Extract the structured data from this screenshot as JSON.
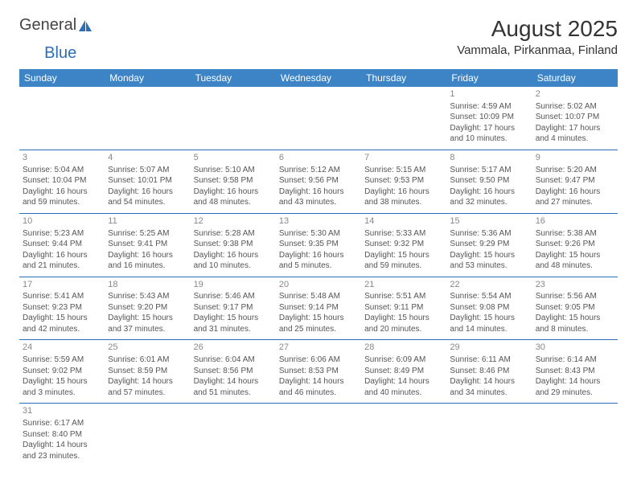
{
  "logo": {
    "part1": "General",
    "part2": "Blue"
  },
  "title": "August 2025",
  "location": "Vammala, Pirkanmaa, Finland",
  "colors": {
    "header_bg": "#3c84c6",
    "header_text": "#ffffff",
    "divider": "#2d6fb5",
    "body_text": "#555555",
    "daynum": "#888888",
    "logo_gray": "#444444",
    "logo_blue": "#2d6fb5",
    "background": "#ffffff"
  },
  "day_headers": [
    "Sunday",
    "Monday",
    "Tuesday",
    "Wednesday",
    "Thursday",
    "Friday",
    "Saturday"
  ],
  "weeks": [
    [
      null,
      null,
      null,
      null,
      null,
      {
        "n": "1",
        "sr": "Sunrise: 4:59 AM",
        "ss": "Sunset: 10:09 PM",
        "dl1": "Daylight: 17 hours",
        "dl2": "and 10 minutes."
      },
      {
        "n": "2",
        "sr": "Sunrise: 5:02 AM",
        "ss": "Sunset: 10:07 PM",
        "dl1": "Daylight: 17 hours",
        "dl2": "and 4 minutes."
      }
    ],
    [
      {
        "n": "3",
        "sr": "Sunrise: 5:04 AM",
        "ss": "Sunset: 10:04 PM",
        "dl1": "Daylight: 16 hours",
        "dl2": "and 59 minutes."
      },
      {
        "n": "4",
        "sr": "Sunrise: 5:07 AM",
        "ss": "Sunset: 10:01 PM",
        "dl1": "Daylight: 16 hours",
        "dl2": "and 54 minutes."
      },
      {
        "n": "5",
        "sr": "Sunrise: 5:10 AM",
        "ss": "Sunset: 9:58 PM",
        "dl1": "Daylight: 16 hours",
        "dl2": "and 48 minutes."
      },
      {
        "n": "6",
        "sr": "Sunrise: 5:12 AM",
        "ss": "Sunset: 9:56 PM",
        "dl1": "Daylight: 16 hours",
        "dl2": "and 43 minutes."
      },
      {
        "n": "7",
        "sr": "Sunrise: 5:15 AM",
        "ss": "Sunset: 9:53 PM",
        "dl1": "Daylight: 16 hours",
        "dl2": "and 38 minutes."
      },
      {
        "n": "8",
        "sr": "Sunrise: 5:17 AM",
        "ss": "Sunset: 9:50 PM",
        "dl1": "Daylight: 16 hours",
        "dl2": "and 32 minutes."
      },
      {
        "n": "9",
        "sr": "Sunrise: 5:20 AM",
        "ss": "Sunset: 9:47 PM",
        "dl1": "Daylight: 16 hours",
        "dl2": "and 27 minutes."
      }
    ],
    [
      {
        "n": "10",
        "sr": "Sunrise: 5:23 AM",
        "ss": "Sunset: 9:44 PM",
        "dl1": "Daylight: 16 hours",
        "dl2": "and 21 minutes."
      },
      {
        "n": "11",
        "sr": "Sunrise: 5:25 AM",
        "ss": "Sunset: 9:41 PM",
        "dl1": "Daylight: 16 hours",
        "dl2": "and 16 minutes."
      },
      {
        "n": "12",
        "sr": "Sunrise: 5:28 AM",
        "ss": "Sunset: 9:38 PM",
        "dl1": "Daylight: 16 hours",
        "dl2": "and 10 minutes."
      },
      {
        "n": "13",
        "sr": "Sunrise: 5:30 AM",
        "ss": "Sunset: 9:35 PM",
        "dl1": "Daylight: 16 hours",
        "dl2": "and 5 minutes."
      },
      {
        "n": "14",
        "sr": "Sunrise: 5:33 AM",
        "ss": "Sunset: 9:32 PM",
        "dl1": "Daylight: 15 hours",
        "dl2": "and 59 minutes."
      },
      {
        "n": "15",
        "sr": "Sunrise: 5:36 AM",
        "ss": "Sunset: 9:29 PM",
        "dl1": "Daylight: 15 hours",
        "dl2": "and 53 minutes."
      },
      {
        "n": "16",
        "sr": "Sunrise: 5:38 AM",
        "ss": "Sunset: 9:26 PM",
        "dl1": "Daylight: 15 hours",
        "dl2": "and 48 minutes."
      }
    ],
    [
      {
        "n": "17",
        "sr": "Sunrise: 5:41 AM",
        "ss": "Sunset: 9:23 PM",
        "dl1": "Daylight: 15 hours",
        "dl2": "and 42 minutes."
      },
      {
        "n": "18",
        "sr": "Sunrise: 5:43 AM",
        "ss": "Sunset: 9:20 PM",
        "dl1": "Daylight: 15 hours",
        "dl2": "and 37 minutes."
      },
      {
        "n": "19",
        "sr": "Sunrise: 5:46 AM",
        "ss": "Sunset: 9:17 PM",
        "dl1": "Daylight: 15 hours",
        "dl2": "and 31 minutes."
      },
      {
        "n": "20",
        "sr": "Sunrise: 5:48 AM",
        "ss": "Sunset: 9:14 PM",
        "dl1": "Daylight: 15 hours",
        "dl2": "and 25 minutes."
      },
      {
        "n": "21",
        "sr": "Sunrise: 5:51 AM",
        "ss": "Sunset: 9:11 PM",
        "dl1": "Daylight: 15 hours",
        "dl2": "and 20 minutes."
      },
      {
        "n": "22",
        "sr": "Sunrise: 5:54 AM",
        "ss": "Sunset: 9:08 PM",
        "dl1": "Daylight: 15 hours",
        "dl2": "and 14 minutes."
      },
      {
        "n": "23",
        "sr": "Sunrise: 5:56 AM",
        "ss": "Sunset: 9:05 PM",
        "dl1": "Daylight: 15 hours",
        "dl2": "and 8 minutes."
      }
    ],
    [
      {
        "n": "24",
        "sr": "Sunrise: 5:59 AM",
        "ss": "Sunset: 9:02 PM",
        "dl1": "Daylight: 15 hours",
        "dl2": "and 3 minutes."
      },
      {
        "n": "25",
        "sr": "Sunrise: 6:01 AM",
        "ss": "Sunset: 8:59 PM",
        "dl1": "Daylight: 14 hours",
        "dl2": "and 57 minutes."
      },
      {
        "n": "26",
        "sr": "Sunrise: 6:04 AM",
        "ss": "Sunset: 8:56 PM",
        "dl1": "Daylight: 14 hours",
        "dl2": "and 51 minutes."
      },
      {
        "n": "27",
        "sr": "Sunrise: 6:06 AM",
        "ss": "Sunset: 8:53 PM",
        "dl1": "Daylight: 14 hours",
        "dl2": "and 46 minutes."
      },
      {
        "n": "28",
        "sr": "Sunrise: 6:09 AM",
        "ss": "Sunset: 8:49 PM",
        "dl1": "Daylight: 14 hours",
        "dl2": "and 40 minutes."
      },
      {
        "n": "29",
        "sr": "Sunrise: 6:11 AM",
        "ss": "Sunset: 8:46 PM",
        "dl1": "Daylight: 14 hours",
        "dl2": "and 34 minutes."
      },
      {
        "n": "30",
        "sr": "Sunrise: 6:14 AM",
        "ss": "Sunset: 8:43 PM",
        "dl1": "Daylight: 14 hours",
        "dl2": "and 29 minutes."
      }
    ],
    [
      {
        "n": "31",
        "sr": "Sunrise: 6:17 AM",
        "ss": "Sunset: 8:40 PM",
        "dl1": "Daylight: 14 hours",
        "dl2": "and 23 minutes."
      },
      null,
      null,
      null,
      null,
      null,
      null
    ]
  ]
}
